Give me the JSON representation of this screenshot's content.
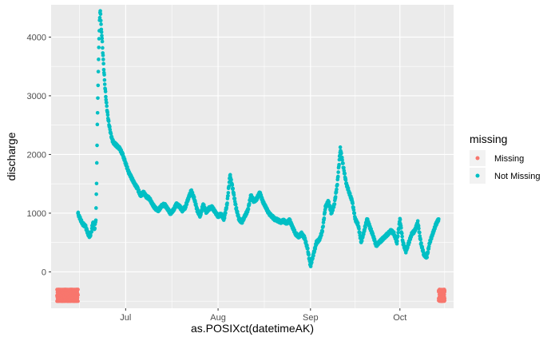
{
  "chart_data": {
    "type": "scatter",
    "title": "",
    "xlabel": "as.POSIXct(datetimeAK)",
    "ylabel": "discharge",
    "x_range": [
      "2019-06-06",
      "2019-10-19"
    ],
    "ylim": [
      -620,
      4550
    ],
    "x_ticks": [
      {
        "date": "2019-07-01",
        "label": "Jul"
      },
      {
        "date": "2019-08-01",
        "label": "Aug"
      },
      {
        "date": "2019-09-01",
        "label": "Sep"
      },
      {
        "date": "2019-10-01",
        "label": "Oct"
      }
    ],
    "y_ticks": [
      {
        "value": 0,
        "label": "0"
      },
      {
        "value": 1000,
        "label": "1000"
      },
      {
        "value": 2000,
        "label": "2000"
      },
      {
        "value": 3000,
        "label": "3000"
      },
      {
        "value": 4000,
        "label": "4000"
      }
    ],
    "grid": true,
    "background": "#ebebeb",
    "legend": {
      "title": "missing",
      "placement": "right",
      "entries": [
        {
          "label": "Missing",
          "color": "#F8766D"
        },
        {
          "label": "Not Missing",
          "color": "#00BFC4"
        }
      ]
    },
    "series": [
      {
        "name": "Missing",
        "color": "#F8766D",
        "y_spread": [
          -500,
          -300
        ],
        "x_ranges": [
          [
            "2019-06-08",
            "2019-06-15"
          ],
          [
            "2019-10-14",
            "2019-10-16"
          ]
        ]
      },
      {
        "name": "Not Missing",
        "color": "#00BFC4",
        "points": [
          [
            "2019-06-15 00:00",
            1000
          ],
          [
            "2019-06-15 12:00",
            930
          ],
          [
            "2019-06-16 00:00",
            880
          ],
          [
            "2019-06-16 12:00",
            820
          ],
          [
            "2019-06-17 00:00",
            800
          ],
          [
            "2019-06-17 12:00",
            780
          ],
          [
            "2019-06-18 00:00",
            700
          ],
          [
            "2019-06-18 12:00",
            640
          ],
          [
            "2019-06-19 00:00",
            600
          ],
          [
            "2019-06-19 12:00",
            680
          ],
          [
            "2019-06-20 00:00",
            850
          ],
          [
            "2019-06-20 12:00",
            700
          ],
          [
            "2019-06-21 00:00",
            900
          ],
          [
            "2019-06-21 06:00",
            1500
          ],
          [
            "2019-06-21 12:00",
            2500
          ],
          [
            "2019-06-21 18:00",
            3200
          ],
          [
            "2019-06-22 00:00",
            3800
          ],
          [
            "2019-06-22 06:00",
            4300
          ],
          [
            "2019-06-22 12:00",
            4450
          ],
          [
            "2019-06-22 18:00",
            4200
          ],
          [
            "2019-06-23 00:00",
            4050
          ],
          [
            "2019-06-23 12:00",
            3600
          ],
          [
            "2019-06-24 00:00",
            3200
          ],
          [
            "2019-06-24 12:00",
            2900
          ],
          [
            "2019-06-25 00:00",
            2650
          ],
          [
            "2019-06-25 12:00",
            2500
          ],
          [
            "2019-06-26 00:00",
            2350
          ],
          [
            "2019-06-26 12:00",
            2250
          ],
          [
            "2019-06-27 00:00",
            2200
          ],
          [
            "2019-06-28 00:00",
            2150
          ],
          [
            "2019-06-29 00:00",
            2100
          ],
          [
            "2019-06-30 00:00",
            2000
          ],
          [
            "2019-07-01 00:00",
            1850
          ],
          [
            "2019-07-02 00:00",
            1700
          ],
          [
            "2019-07-03 00:00",
            1600
          ],
          [
            "2019-07-04 00:00",
            1500
          ],
          [
            "2019-07-05 00:00",
            1420
          ],
          [
            "2019-07-06 00:00",
            1300
          ],
          [
            "2019-07-07 00:00",
            1350
          ],
          [
            "2019-07-08 00:00",
            1280
          ],
          [
            "2019-07-09 00:00",
            1250
          ],
          [
            "2019-07-10 00:00",
            1150
          ],
          [
            "2019-07-11 00:00",
            1080
          ],
          [
            "2019-07-12 00:00",
            1050
          ],
          [
            "2019-07-13 00:00",
            1120
          ],
          [
            "2019-07-14 00:00",
            1150
          ],
          [
            "2019-07-15 00:00",
            1080
          ],
          [
            "2019-07-16 00:00",
            1000
          ],
          [
            "2019-07-17 00:00",
            1050
          ],
          [
            "2019-07-18 00:00",
            1150
          ],
          [
            "2019-07-19 00:00",
            1120
          ],
          [
            "2019-07-20 00:00",
            1050
          ],
          [
            "2019-07-21 00:00",
            1100
          ],
          [
            "2019-07-22 00:00",
            1250
          ],
          [
            "2019-07-23 00:00",
            1380
          ],
          [
            "2019-07-24 00:00",
            1250
          ],
          [
            "2019-07-25 00:00",
            1050
          ],
          [
            "2019-07-26 00:00",
            950
          ],
          [
            "2019-07-27 00:00",
            1150
          ],
          [
            "2019-07-28 00:00",
            1020
          ],
          [
            "2019-07-29 00:00",
            1080
          ],
          [
            "2019-07-30 00:00",
            1100
          ],
          [
            "2019-07-31 00:00",
            1020
          ],
          [
            "2019-08-01 00:00",
            950
          ],
          [
            "2019-08-02 00:00",
            980
          ],
          [
            "2019-08-03 00:00",
            900
          ],
          [
            "2019-08-04 00:00",
            1150
          ],
          [
            "2019-08-05 00:00",
            1650
          ],
          [
            "2019-08-06 00:00",
            1400
          ],
          [
            "2019-08-07 00:00",
            1100
          ],
          [
            "2019-08-08 00:00",
            900
          ],
          [
            "2019-08-09 00:00",
            850
          ],
          [
            "2019-08-10 00:00",
            950
          ],
          [
            "2019-08-11 00:00",
            1050
          ],
          [
            "2019-08-12 00:00",
            1300
          ],
          [
            "2019-08-13 00:00",
            1200
          ],
          [
            "2019-08-14 00:00",
            1250
          ],
          [
            "2019-08-15 00:00",
            1350
          ],
          [
            "2019-08-16 00:00",
            1200
          ],
          [
            "2019-08-17 00:00",
            1100
          ],
          [
            "2019-08-18 00:00",
            1000
          ],
          [
            "2019-08-19 00:00",
            950
          ],
          [
            "2019-08-20 00:00",
            900
          ],
          [
            "2019-08-21 00:00",
            880
          ],
          [
            "2019-08-22 00:00",
            850
          ],
          [
            "2019-08-23 00:00",
            870
          ],
          [
            "2019-08-24 00:00",
            830
          ],
          [
            "2019-08-25 00:00",
            880
          ],
          [
            "2019-08-26 00:00",
            760
          ],
          [
            "2019-08-27 00:00",
            650
          ],
          [
            "2019-08-28 00:00",
            600
          ],
          [
            "2019-08-29 00:00",
            650
          ],
          [
            "2019-08-30 00:00",
            580
          ],
          [
            "2019-08-31 00:00",
            400
          ],
          [
            "2019-09-01 00:00",
            100
          ],
          [
            "2019-09-02 00:00",
            300
          ],
          [
            "2019-09-03 00:00",
            500
          ],
          [
            "2019-09-04 00:00",
            550
          ],
          [
            "2019-09-05 00:00",
            700
          ],
          [
            "2019-09-06 00:00",
            1100
          ],
          [
            "2019-09-07 00:00",
            1200
          ],
          [
            "2019-09-08 00:00",
            1000
          ],
          [
            "2019-09-09 00:00",
            1150
          ],
          [
            "2019-09-10 00:00",
            1500
          ],
          [
            "2019-09-11 00:00",
            2100
          ],
          [
            "2019-09-12 00:00",
            1800
          ],
          [
            "2019-09-13 00:00",
            1500
          ],
          [
            "2019-09-14 00:00",
            1350
          ],
          [
            "2019-09-15 00:00",
            1200
          ],
          [
            "2019-09-16 00:00",
            900
          ],
          [
            "2019-09-17 00:00",
            800
          ],
          [
            "2019-09-18 00:00",
            500
          ],
          [
            "2019-09-19 00:00",
            700
          ],
          [
            "2019-09-20 00:00",
            900
          ],
          [
            "2019-09-21 00:00",
            750
          ],
          [
            "2019-09-22 00:00",
            620
          ],
          [
            "2019-09-23 00:00",
            450
          ],
          [
            "2019-09-24 00:00",
            500
          ],
          [
            "2019-09-25 00:00",
            550
          ],
          [
            "2019-09-26 00:00",
            600
          ],
          [
            "2019-09-27 00:00",
            650
          ],
          [
            "2019-09-28 00:00",
            700
          ],
          [
            "2019-09-29 00:00",
            650
          ],
          [
            "2019-09-30 00:00",
            500
          ],
          [
            "2019-10-01 00:00",
            900
          ],
          [
            "2019-10-02 00:00",
            500
          ],
          [
            "2019-10-03 00:00",
            350
          ],
          [
            "2019-10-04 00:00",
            500
          ],
          [
            "2019-10-05 00:00",
            650
          ],
          [
            "2019-10-06 00:00",
            700
          ],
          [
            "2019-10-07 00:00",
            850
          ],
          [
            "2019-10-08 00:00",
            500
          ],
          [
            "2019-10-09 00:00",
            300
          ],
          [
            "2019-10-10 00:00",
            250
          ],
          [
            "2019-10-11 00:00",
            500
          ],
          [
            "2019-10-12 00:00",
            650
          ],
          [
            "2019-10-13 00:00",
            800
          ],
          [
            "2019-10-14 00:00",
            900
          ]
        ]
      }
    ]
  }
}
